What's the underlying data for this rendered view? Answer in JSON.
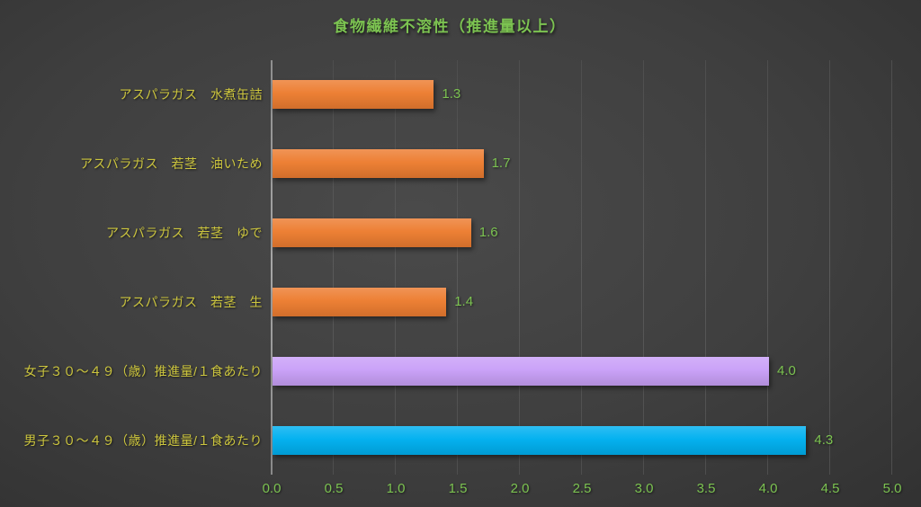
{
  "chart_data": {
    "type": "bar",
    "orientation": "horizontal",
    "title": "食物繊維不溶性（推進量以上）",
    "categories": [
      "アスパラガス　水煮缶詰",
      "アスパラガス　若茎　油いため",
      "アスパラガス　若茎　ゆで",
      "アスパラガス　若茎　生",
      "女子３０～４９（歳）推進量/１食あたり",
      "男子３０～４９（歳）推進量/１食あたり"
    ],
    "values": [
      1.3,
      1.7,
      1.6,
      1.4,
      4.0,
      4.3
    ],
    "value_labels": [
      "1.3",
      "1.7",
      "1.6",
      "1.4",
      "4.0",
      "4.3"
    ],
    "bar_colors": [
      "#ED7D31",
      "#ED7D31",
      "#ED7D31",
      "#ED7D31",
      "#C9A0F8",
      "#00B0F0"
    ],
    "xlabel": "",
    "ylabel": "",
    "xlim": [
      0.0,
      5.0
    ],
    "x_ticks": [
      0.0,
      0.5,
      1.0,
      1.5,
      2.0,
      2.5,
      3.0,
      3.5,
      4.0,
      4.5,
      5.0
    ],
    "x_tick_labels": [
      "0.0",
      "0.5",
      "1.0",
      "1.5",
      "2.0",
      "2.5",
      "3.0",
      "3.5",
      "4.0",
      "4.5",
      "5.0"
    ],
    "grid": true,
    "legend": false,
    "colors": {
      "background": "#3F3F3F",
      "title_text": "#7CC351",
      "category_text": "#CDC63E",
      "value_text": "#7CC351",
      "tick_text": "#7CC351",
      "grid_line": "#5A5A5A",
      "axis_line": "#A6A6A6"
    }
  }
}
